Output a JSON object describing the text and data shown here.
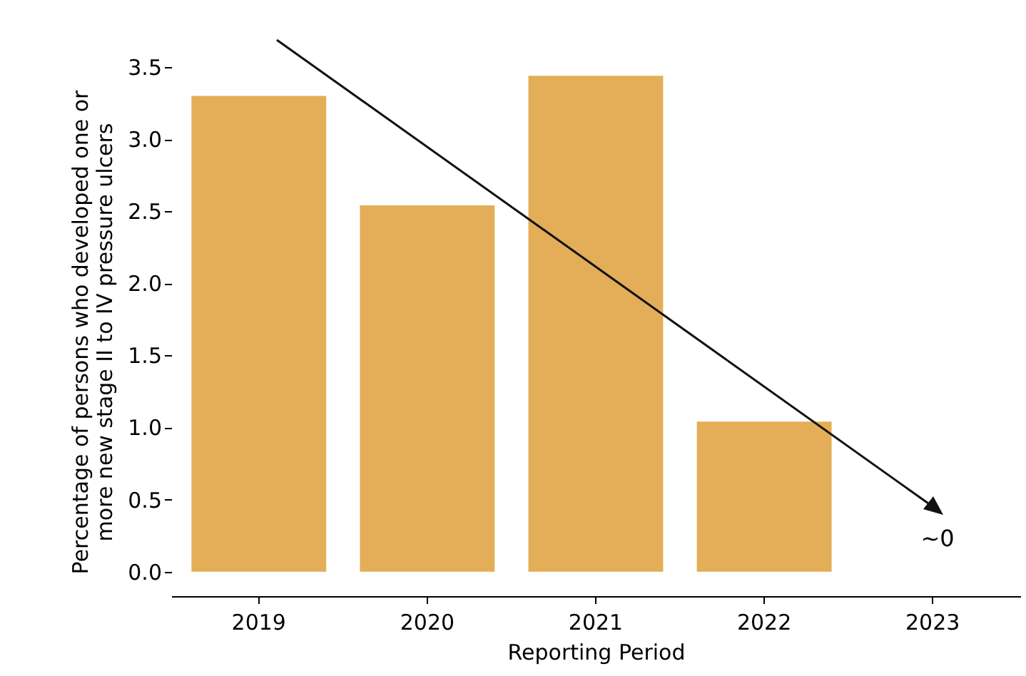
{
  "chart_data": {
    "type": "bar",
    "xlabel": "Reporting Period",
    "ylabel": "Percentage of persons who developed one or more new stage II to IV pressure ulcers",
    "categories": [
      "2019",
      "2020",
      "2021",
      "2022",
      "2023"
    ],
    "values": [
      3.3,
      2.54,
      3.44,
      1.04,
      0
    ],
    "color": "#e3ae57",
    "ylim": [
      -0.17,
      3.5
    ],
    "yticks": [
      {
        "value": 0,
        "label": "0.0"
      },
      0.5,
      {
        "value": 1,
        "label": "1.0"
      },
      1.5,
      {
        "value": 2,
        "label": "2.0"
      },
      2.5,
      {
        "value": 3,
        "label": "3.0"
      },
      3.5
    ],
    "annotations": [
      "~0"
    ],
    "grid": false
  }
}
